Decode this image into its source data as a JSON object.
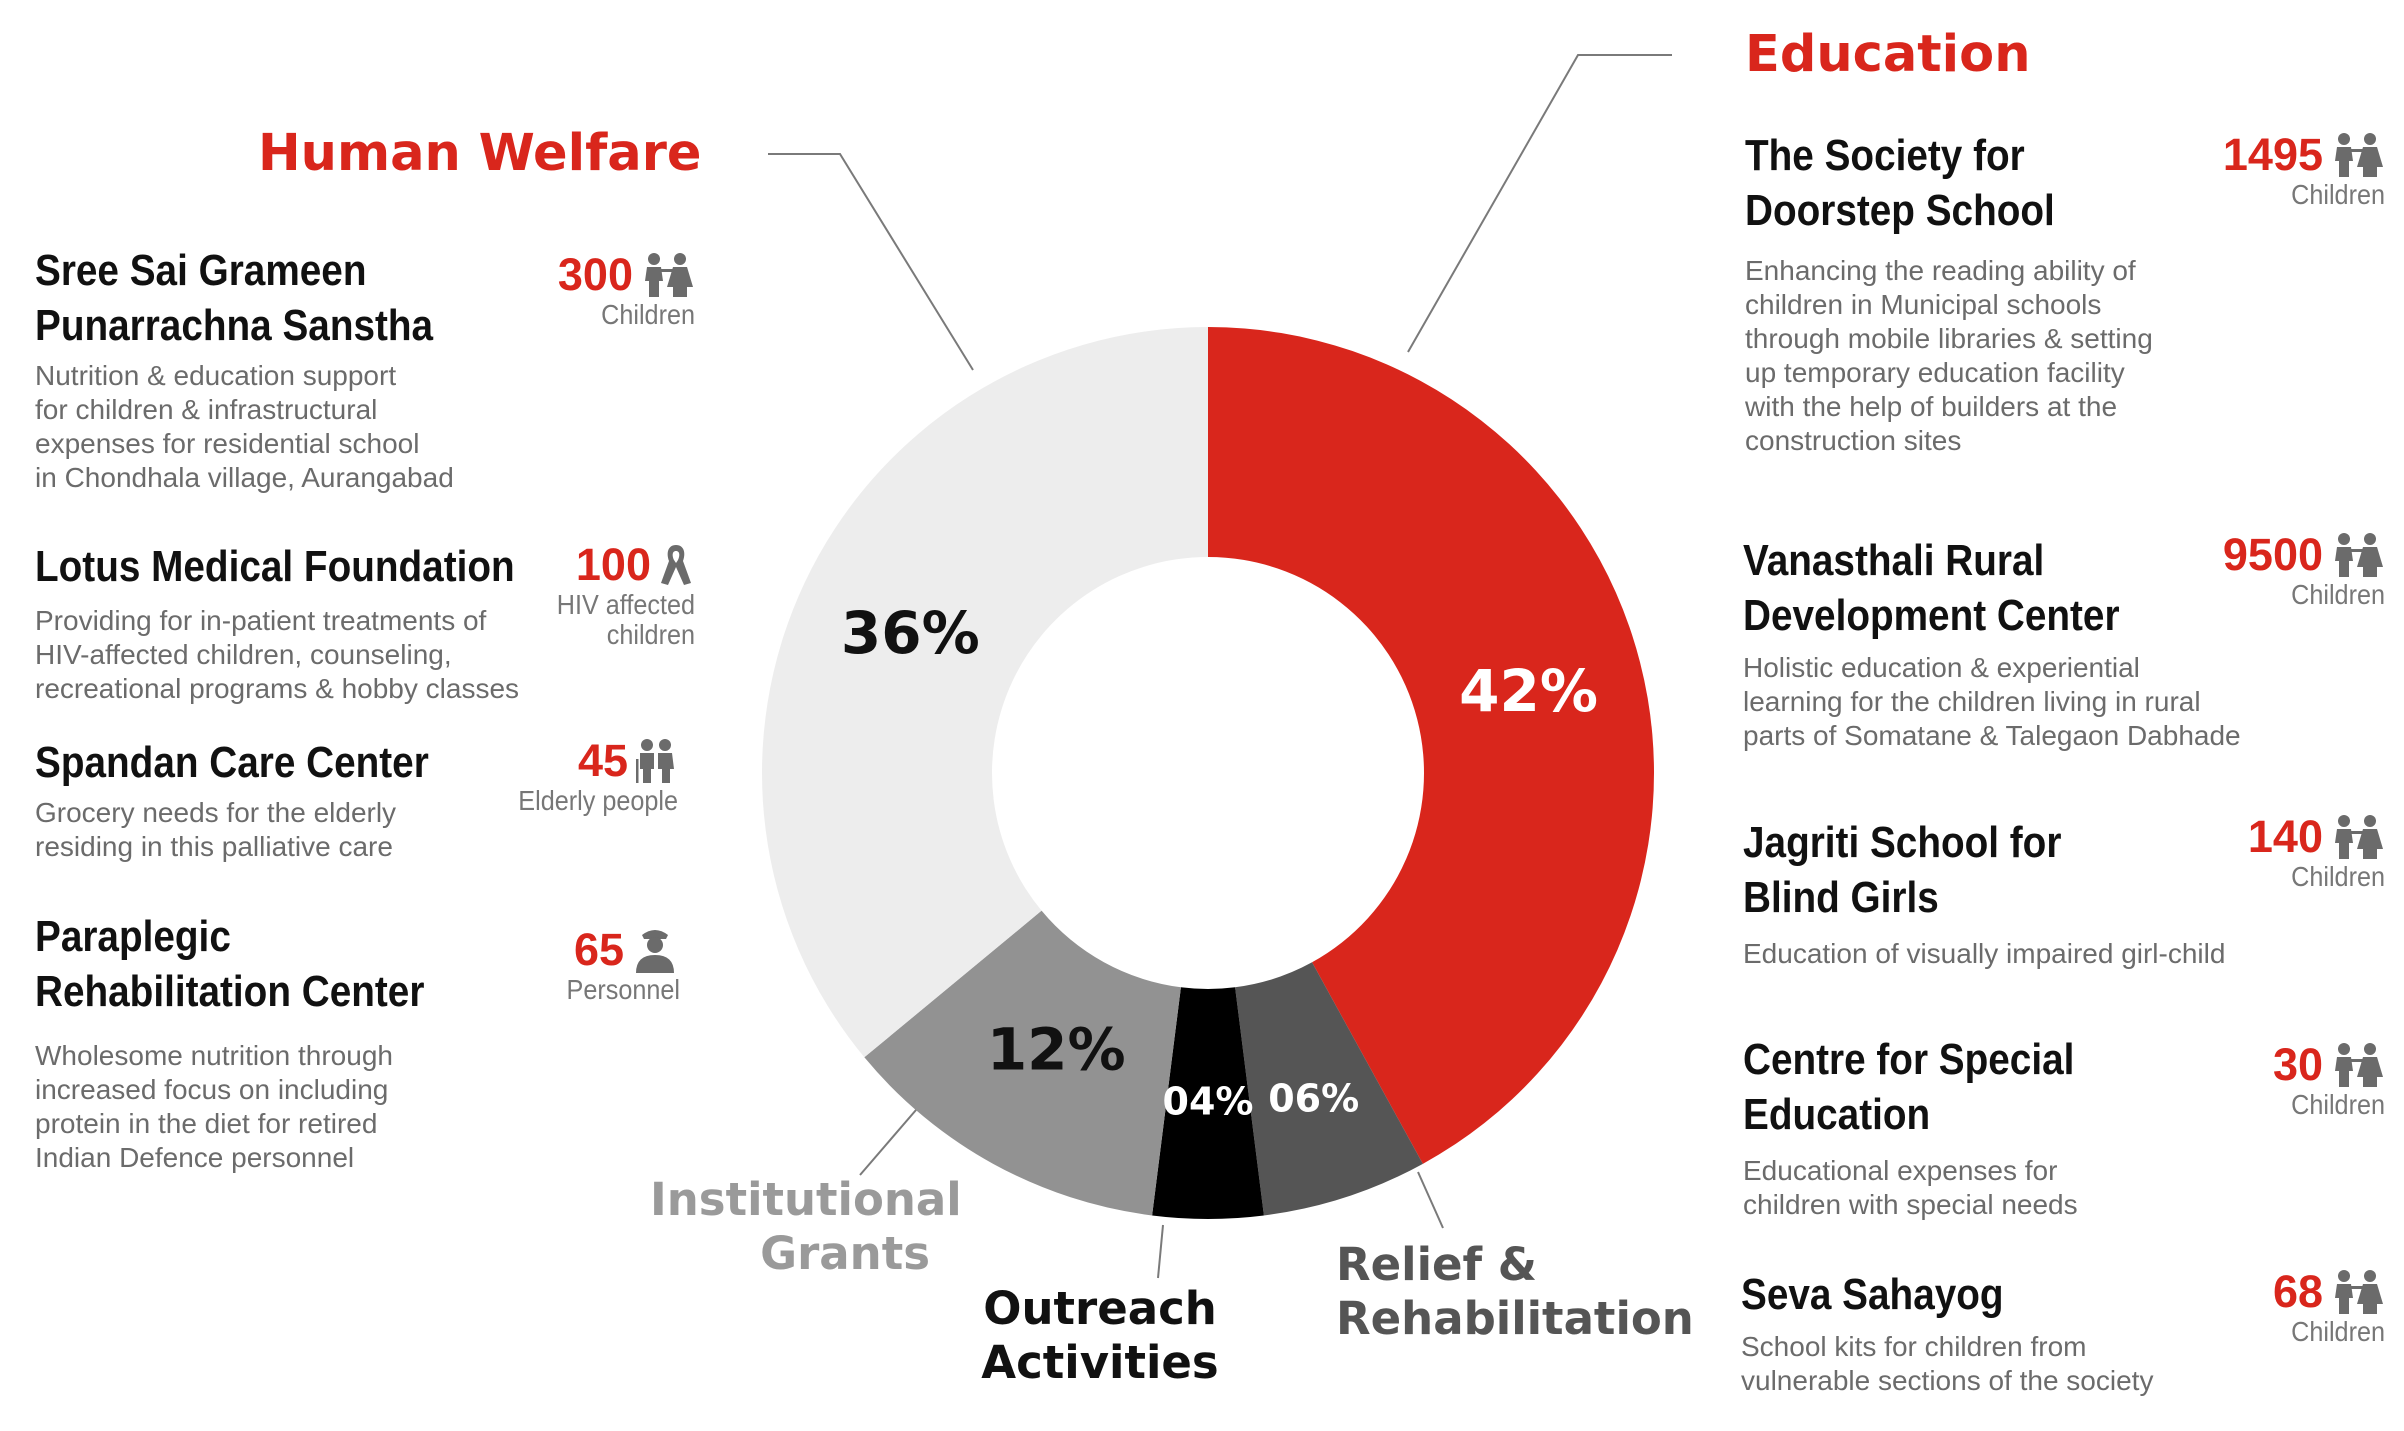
{
  "chart_data": {
    "type": "pie",
    "title": "",
    "slices": [
      {
        "name": "Education",
        "value": 42,
        "label": "42%",
        "color": "#d9261c",
        "label_color": "#ffffff"
      },
      {
        "name": "Relief & Rehabilitation",
        "value": 6,
        "label": "06%",
        "color": "#555555",
        "label_color": "#ffffff"
      },
      {
        "name": "Outreach Activities",
        "value": 4,
        "label": "04%",
        "color": "#000000",
        "label_color": "#ffffff"
      },
      {
        "name": "Institutional Grants",
        "value": 12,
        "label": "12%",
        "color": "#929292",
        "label_color": "#111111"
      },
      {
        "name": "Human Welfare",
        "value": 36,
        "label": "36%",
        "color": "#ededed",
        "label_color": "#111111"
      }
    ]
  },
  "categories": {
    "education": {
      "title": "Education",
      "color": "#d9261c"
    },
    "human_welfare": {
      "title": "Human Welfare",
      "color": "#d9261c"
    },
    "institutional_grants": {
      "line1": "Institutional",
      "line2": "Grants",
      "color": "#9a9a9a"
    },
    "outreach": {
      "line1": "Outreach",
      "line2": "Activities",
      "color": "#111111"
    },
    "relief": {
      "line1": "Relief &",
      "line2": "Rehabilitation",
      "color": "#555555"
    }
  },
  "human_welfare": [
    {
      "name1": "Sree Sai Grameen",
      "name2": "Punarrachna Sanstha",
      "desc": [
        "Nutrition & education support",
        "for children & infrastructural",
        "expenses for residential school",
        "in Chondhala village, Aurangabad"
      ],
      "count": "300",
      "unit1": "Children",
      "unit2": "",
      "icon": "children-icon"
    },
    {
      "name1": "Lotus Medical Foundation",
      "name2": "",
      "desc": [
        "Providing for in-patient treatments of",
        "HIV-affected children, counseling,",
        "recreational programs & hobby classes"
      ],
      "count": "100",
      "unit1": "HIV affected",
      "unit2": "children",
      "icon": "ribbon-icon"
    },
    {
      "name1": "Spandan Care Center",
      "name2": "",
      "desc": [
        "Grocery needs for the elderly",
        "residing in this palliative care"
      ],
      "count": "45",
      "unit1": "Elderly people",
      "unit2": "",
      "icon": "elderly-icon"
    },
    {
      "name1": "Paraplegic",
      "name2": "Rehabilitation Center",
      "desc": [
        "Wholesome nutrition through",
        "increased focus on including",
        "protein in the diet for retired",
        "Indian Defence personnel"
      ],
      "count": "65",
      "unit1": "Personnel",
      "unit2": "",
      "icon": "soldier-icon"
    }
  ],
  "education": [
    {
      "name1": "The Society for",
      "name2": "Doorstep School",
      "desc": [
        "Enhancing the reading ability of",
        "children in Municipal schools",
        "through mobile libraries & setting",
        "up temporary education facility",
        "with the help of builders at the",
        "construction sites"
      ],
      "count": "1495",
      "unit1": "Children",
      "icon": "children-icon"
    },
    {
      "name1": "Vanasthali Rural",
      "name2": "Development Center",
      "desc": [
        "Holistic education & experiential",
        "learning for the children living in rural",
        "parts of Somatane & Talegaon Dabhade"
      ],
      "count": "9500",
      "unit1": "Children",
      "icon": "children-icon"
    },
    {
      "name1": "Jagriti School for",
      "name2": "Blind Girls",
      "desc": [
        "Education of visually impaired girl-child"
      ],
      "count": "140",
      "unit1": "Children",
      "icon": "children-icon"
    },
    {
      "name1": "Centre for Special",
      "name2": "Education",
      "desc": [
        "Educational expenses for",
        "children with special needs"
      ],
      "count": "30",
      "unit1": "Children",
      "icon": "children-icon"
    },
    {
      "name1": "Seva Sahayog",
      "name2": "",
      "desc": [
        "School kits for children from",
        "vulnerable sections of the society"
      ],
      "count": "68",
      "unit1": "Children",
      "icon": "children-icon"
    }
  ]
}
